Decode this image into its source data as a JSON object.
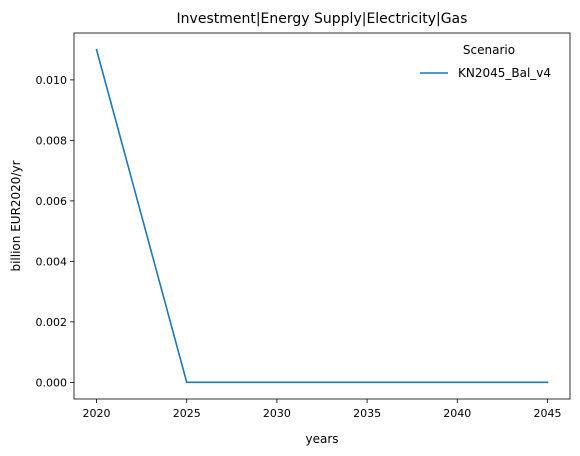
{
  "chart_data": {
    "type": "line",
    "title": "Investment|Energy Supply|Electricity|Gas",
    "xlabel": "years",
    "ylabel": "billion EUR2020/yr",
    "x": [
      2020,
      2025,
      2030,
      2035,
      2040,
      2045
    ],
    "series": [
      {
        "name": "KN2045_Bal_v4",
        "color": "#1f77b4",
        "values": [
          0.011,
          0.0,
          0.0,
          0.0,
          0.0,
          0.0
        ]
      }
    ],
    "xlim": [
      2018.75,
      2046.25
    ],
    "ylim": [
      -0.00055,
      0.01155
    ],
    "xticks": [
      2020,
      2025,
      2030,
      2035,
      2040,
      2045
    ],
    "xtick_labels": [
      "2020",
      "2025",
      "2030",
      "2035",
      "2040",
      "2045"
    ],
    "yticks": [
      0.0,
      0.002,
      0.004,
      0.006,
      0.008,
      0.01
    ],
    "ytick_labels": [
      "0.000",
      "0.002",
      "0.004",
      "0.006",
      "0.008",
      "0.010"
    ],
    "grid": false,
    "legend": {
      "title": "Scenario",
      "position": "top-right"
    }
  }
}
